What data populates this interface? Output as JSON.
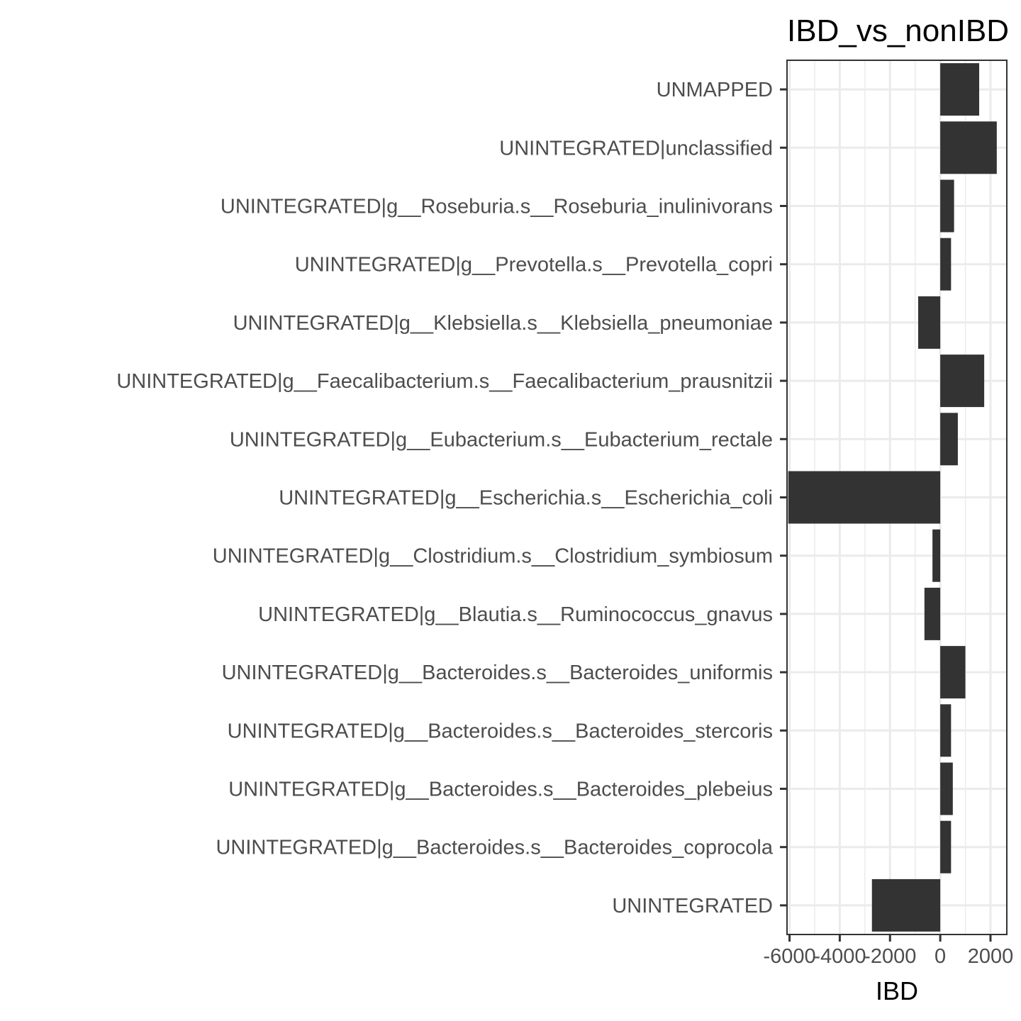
{
  "chart_data": {
    "type": "bar",
    "orientation": "horizontal",
    "title": "IBD_vs_nonIBD",
    "xlabel": "IBD",
    "ylabel": "",
    "xlim": [
      -6100,
      2650
    ],
    "xticks": [
      -6000,
      -4000,
      -2000,
      0,
      2000
    ],
    "xtick_labels": [
      "-6000",
      "-4000",
      "-2000",
      "0",
      "2000"
    ],
    "grid": true,
    "bar_color": "#333333",
    "categories": [
      "UNMAPPED",
      "UNINTEGRATED|unclassified",
      "UNINTEGRATED|g__Roseburia.s__Roseburia_inulinivorans",
      "UNINTEGRATED|g__Prevotella.s__Prevotella_copri",
      "UNINTEGRATED|g__Klebsiella.s__Klebsiella_pneumoniae",
      "UNINTEGRATED|g__Faecalibacterium.s__Faecalibacterium_prausnitzii",
      "UNINTEGRATED|g__Eubacterium.s__Eubacterium_rectale",
      "UNINTEGRATED|g__Escherichia.s__Escherichia_coli",
      "UNINTEGRATED|g__Clostridium.s__Clostridium_symbiosum",
      "UNINTEGRATED|g__Blautia.s__Ruminococcus_gnavus",
      "UNINTEGRATED|g__Bacteroides.s__Bacteroides_uniformis",
      "UNINTEGRATED|g__Bacteroides.s__Bacteroides_stercoris",
      "UNINTEGRATED|g__Bacteroides.s__Bacteroides_plebeius",
      "UNINTEGRATED|g__Bacteroides.s__Bacteroides_coprocola",
      "UNINTEGRATED"
    ],
    "values": [
      1550,
      2250,
      550,
      430,
      -880,
      1750,
      700,
      -6050,
      -310,
      -630,
      1000,
      430,
      500,
      430,
      -2720
    ]
  }
}
